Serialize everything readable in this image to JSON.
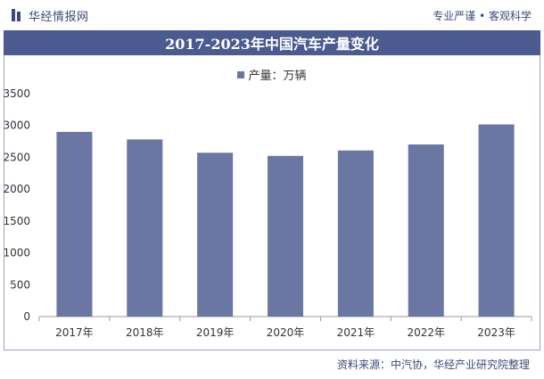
{
  "header": {
    "brand": "华经情报网",
    "tagline": "专业严谨 • 客观科学"
  },
  "chart_data": {
    "type": "bar",
    "title": "2017-2023年中国汽车产量变化",
    "categories": [
      "2017年",
      "2018年",
      "2019年",
      "2020年",
      "2021年",
      "2022年",
      "2023年"
    ],
    "series": [
      {
        "name": "产量：万辆",
        "values": [
          2900,
          2781,
          2572,
          2523,
          2608,
          2702,
          3016
        ]
      }
    ],
    "ylim": [
      0,
      3500
    ],
    "yticks": [
      0,
      500,
      1000,
      1500,
      2000,
      2500,
      3000,
      3500
    ],
    "grid": false,
    "legend_position": "top-center",
    "bar_color": "#6977a2"
  },
  "footer": {
    "source": "资料来源：中汽协，华经产业研究院整理"
  }
}
